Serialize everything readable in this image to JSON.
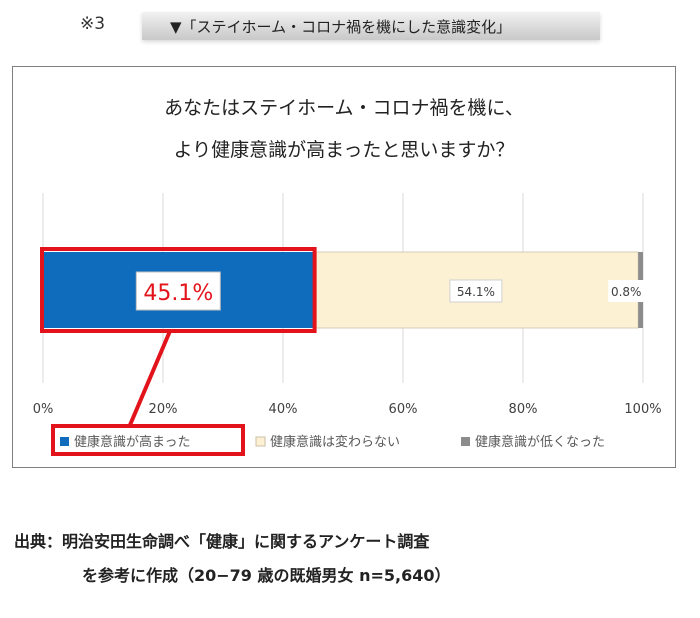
{
  "note_mark": "※3",
  "header": {
    "title": "▼「ステイホーム・コロナ禍を機にした意識変化」"
  },
  "chart_title": {
    "line1": "あなたはステイホーム・コロナ禍を機に、",
    "line2": "より健康意識が高まったと思いますか？"
  },
  "chart_data": {
    "type": "bar",
    "orientation": "horizontal",
    "stacked": true,
    "title": "あなたはステイホーム・コロナ禍を機に、より健康意識が高まったと思いますか？",
    "xlim": [
      0,
      100
    ],
    "x_ticks": [
      "0%",
      "20%",
      "40%",
      "60%",
      "80%",
      "100%"
    ],
    "grid": true,
    "legend_position": "bottom",
    "series": [
      {
        "name": "健康意識が高まった",
        "value": 45.1,
        "label": "45.1%",
        "color": "#0f6cbd"
      },
      {
        "name": "健康意識は変わらない",
        "value": 54.1,
        "label": "54.1%",
        "color": "#fdf1d4"
      },
      {
        "name": "健康意識が低くなった",
        "value": 0.8,
        "label": "0.8%",
        "color": "#8c8c8c"
      }
    ],
    "highlight_color": "#e3131b"
  },
  "source": {
    "line1": "出典：明治安田生命調べ「健康」に関するアンケート調査",
    "line2": "を参考に作成（20−79 歳の既婚男女 n=5,640）"
  }
}
